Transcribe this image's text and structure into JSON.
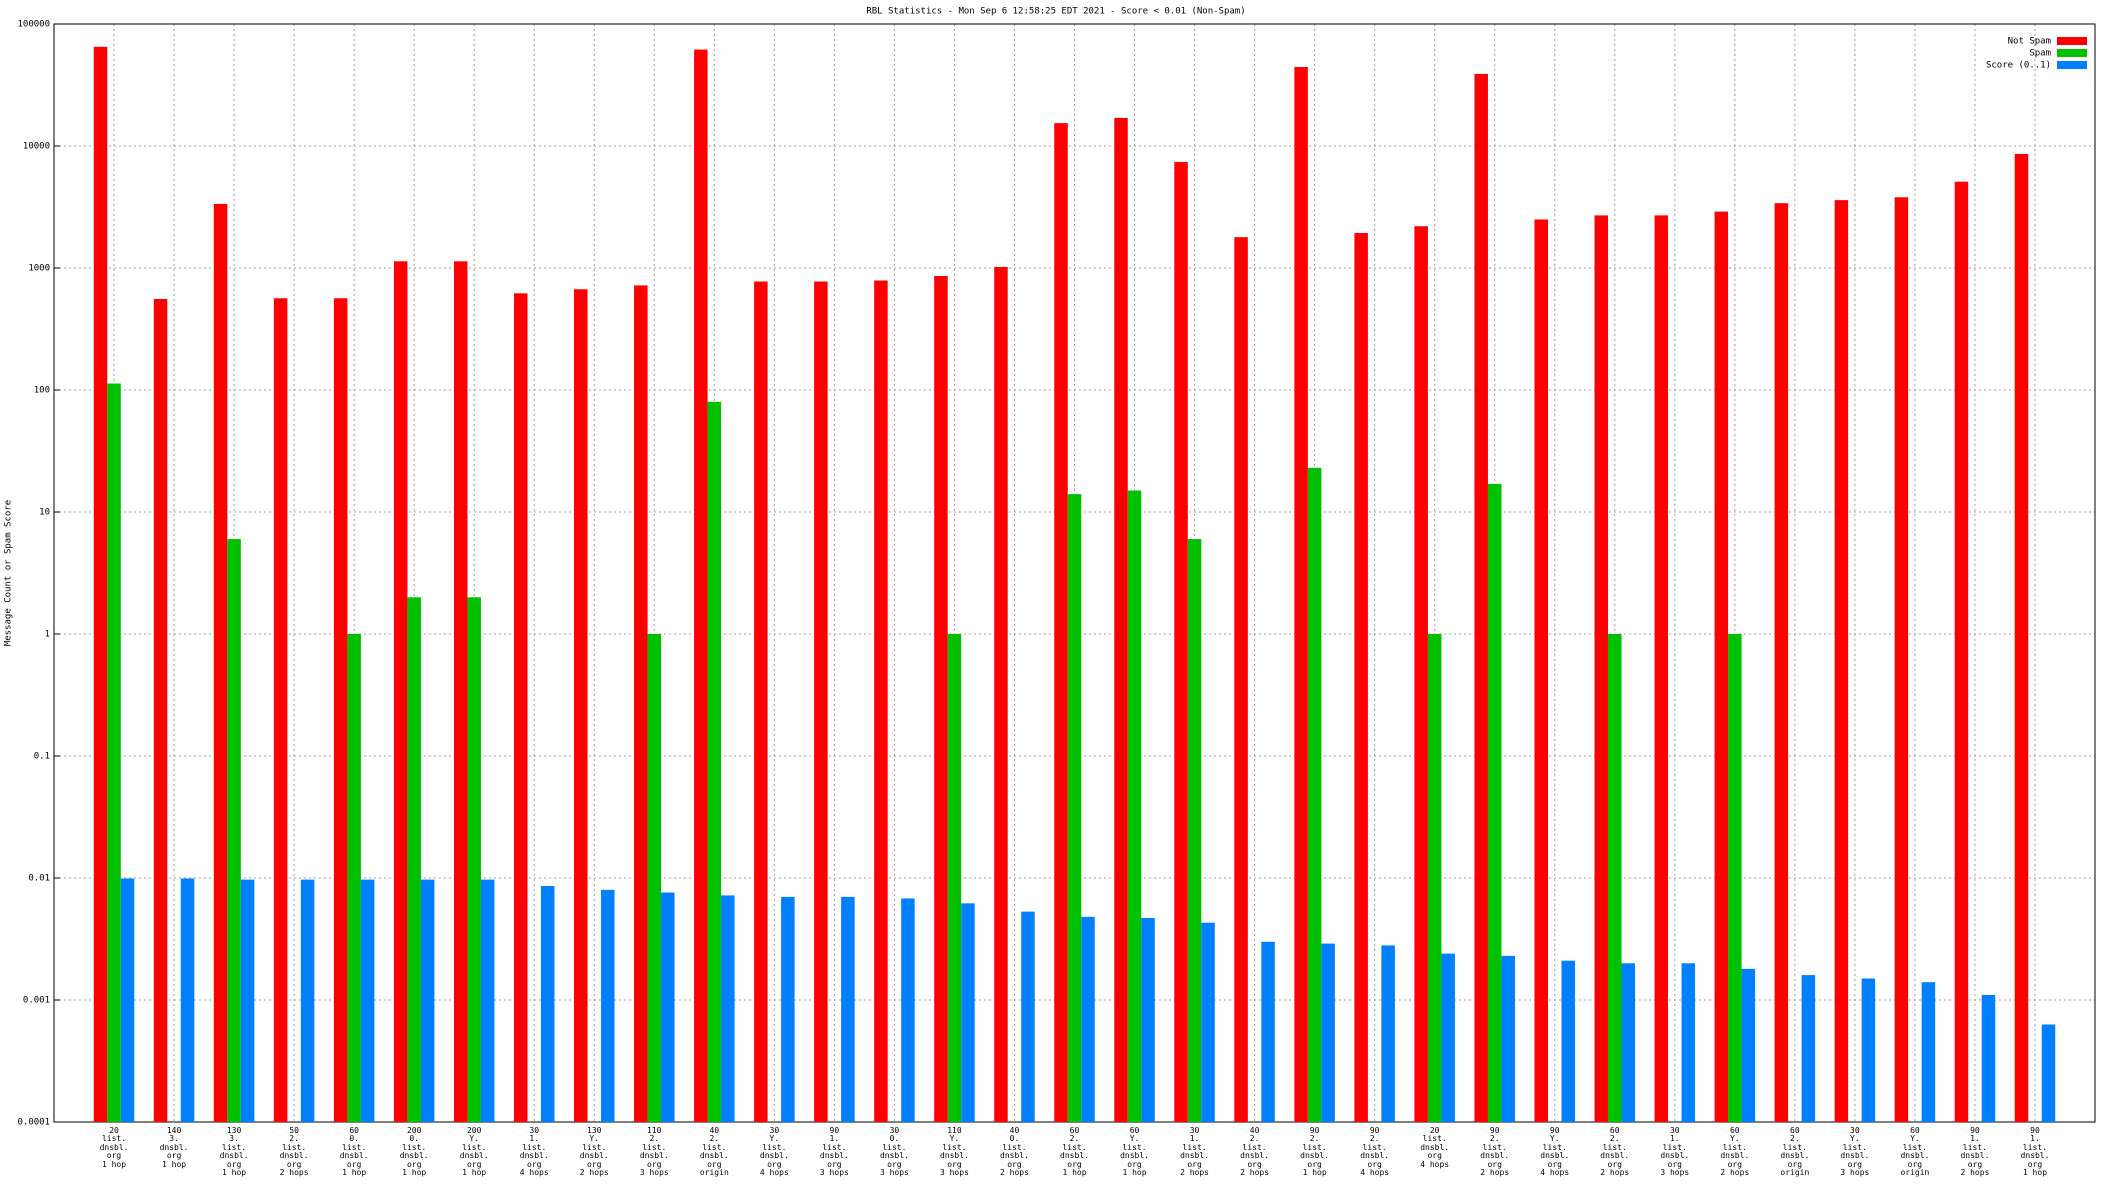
{
  "chart_data": {
    "type": "bar",
    "title": "RBL Statistics - Mon Sep  6 12:58:25 EDT 2021 - Score < 0.01 (Non-Spam)",
    "y_label": "Message Count or Spam Score",
    "log_scale": true,
    "grid": true,
    "legend": "upper right",
    "ylim": [
      0.0001,
      100000
    ],
    "yticks": [
      0.0001,
      0.001,
      0.01,
      0.1,
      1,
      10,
      100,
      1000,
      10000,
      100000
    ],
    "categories": [
      "20\nlist.\ndnsbl.\norg\n1 hop",
      "140\n3.\ndnsbl.\norg\n1 hop",
      "130\n3.\nlist.\ndnsbl.\norg\n1 hop",
      "50\n2.\nlist.\ndnsbl.\norg\n2 hops",
      "60\n0.\nlist.\ndnsbl.\norg\n1 hop",
      "200\n0.\nlist.\ndnsbl.\norg\n1 hop",
      "200\nY.\nlist.\ndnsbl.\norg\n1 hop",
      "30\n1.\nlist.\ndnsbl.\norg\n4 hops",
      "130\nY.\nlist.\ndnsbl.\norg\n2 hops",
      "110\n2.\nlist.\ndnsbl.\norg\n3 hops",
      "40\n2.\nlist.\ndnsbl.\norg\norigin",
      "30\nY.\nlist.\ndnsbl.\norg\n4 hops",
      "90\n1.\nlist.\ndnsbl.\norg\n3 hops",
      "30\n0.\nlist.\ndnsbl.\norg\n3 hops",
      "110\nY.\nlist.\ndnsbl.\norg\n3 hops",
      "40\n0.\nlist.\ndnsbl.\norg\n2 hops",
      "60\n2.\nlist.\ndnsbl.\norg\n1 hop",
      "60\nY.\nlist.\ndnsbl.\norg\n1 hop",
      "30\n1.\nlist.\ndnsbl.\norg\n2 hops",
      "40\n2.\nlist.\ndnsbl.\norg\n2 hops",
      "90\n2.\nlist.\ndnsbl.\norg\n1 hop",
      "90\n2.\nlist.\ndnsbl.\norg\n4 hops",
      "20\nlist.\ndnsbl.\norg\n4 hops",
      "90\n2.\nlist.\ndnsbl.\norg\n2 hops",
      "90\nY.\nlist.\ndnsbl.\norg\n4 hops",
      "60\n2.\nlist.\ndnsbl.\norg\n2 hops",
      "30\n1.\nlist.\ndnsbl.\norg\n3 hops",
      "60\nY.\nlist.\ndnsbl.\norg\n2 hops",
      "60\n2.\nlist.\ndnsbl.\norg\norigin",
      "30\nY.\nlist.\ndnsbl.\norg\n3 hops",
      "60\nY.\nlist.\ndnsbl.\norg\norigin",
      "90\n1.\nlist.\ndnsbl.\norg\n2 hops",
      "90\n1.\nlist.\ndnsbl.\norg\n1 hop"
    ],
    "series": [
      {
        "name": "Not Spam",
        "color": "#ff0000",
        "values": [
          65000,
          557,
          3350,
          565,
          565,
          1135,
          1135,
          620,
          670,
          720,
          61700,
          775,
          775,
          790,
          860,
          1020,
          15400,
          17000,
          7400,
          1790,
          44400,
          1935,
          2200,
          39000,
          2500,
          2700,
          2700,
          2900,
          3400,
          3600,
          3800,
          5100,
          8600
        ]
      },
      {
        "name": "Spam",
        "color": "#00c000",
        "values": [
          113,
          null,
          6,
          null,
          1,
          2,
          2,
          null,
          null,
          1,
          80,
          null,
          null,
          null,
          1,
          null,
          14,
          15,
          6,
          null,
          23,
          null,
          1,
          17,
          null,
          1,
          null,
          1,
          null,
          null,
          null,
          null,
          null
        ]
      },
      {
        "name": "Score (0..1)",
        "color": "#0080ff",
        "values": [
          0.0099,
          0.0099,
          0.0097,
          0.0097,
          0.0097,
          0.0097,
          0.0097,
          0.0086,
          0.008,
          0.0076,
          0.0072,
          0.007,
          0.007,
          0.0068,
          0.0062,
          0.0053,
          0.0048,
          0.0047,
          0.0043,
          0.003,
          0.0029,
          0.0028,
          0.0024,
          0.0023,
          0.0021,
          0.002,
          0.002,
          0.0018,
          0.0016,
          0.0015,
          0.0014,
          0.0011,
          0.00063
        ]
      }
    ]
  }
}
